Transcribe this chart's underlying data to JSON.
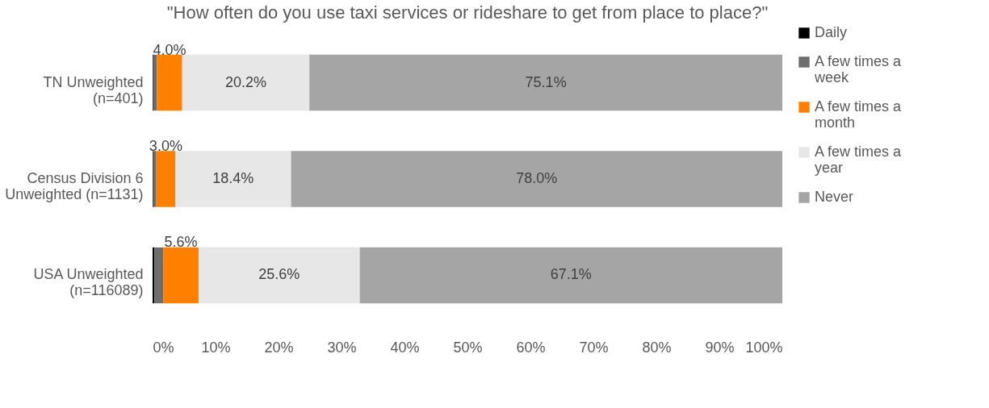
{
  "chart_data": {
    "type": "bar",
    "orientation": "horizontal",
    "stacked": true,
    "title": "\"How often do you use taxi services or rideshare to get from place to place?\"",
    "categories": [
      "TN Unweighted (n=401)",
      "Census Division 6 Unweighted (n=1131)",
      "USA Unweighted (n=116089)"
    ],
    "series": [
      {
        "name": "Daily",
        "color": "#000000",
        "values": [
          0.1,
          0.1,
          0.3
        ]
      },
      {
        "name": "A few times a week",
        "color": "#6d6d6d",
        "values": [
          0.6,
          0.5,
          1.4
        ]
      },
      {
        "name": "A few times a month",
        "color": "#ff8000",
        "values": [
          4.0,
          3.0,
          5.6
        ],
        "value_labels": [
          "4.0%",
          "3.0%",
          "5.6%"
        ]
      },
      {
        "name": "A few times a year",
        "color": "#e7e7e7",
        "values": [
          20.2,
          18.4,
          25.6
        ],
        "value_labels": [
          "20.2%",
          "18.4%",
          "25.6%"
        ]
      },
      {
        "name": "Never",
        "color": "#a5a5a5",
        "values": [
          75.1,
          78.0,
          67.1
        ],
        "value_labels": [
          "75.1%",
          "78.0%",
          "67.1%"
        ]
      }
    ],
    "xlim": [
      0,
      100
    ],
    "xticks": [
      {
        "value": 0,
        "label": "0%"
      },
      {
        "value": 10,
        "label": "10%"
      },
      {
        "value": 20,
        "label": "20%"
      },
      {
        "value": 30,
        "label": "30%"
      },
      {
        "value": 40,
        "label": "40%"
      },
      {
        "value": 50,
        "label": "50%"
      },
      {
        "value": 60,
        "label": "60%"
      },
      {
        "value": 70,
        "label": "70%"
      },
      {
        "value": 80,
        "label": "80%"
      },
      {
        "value": 90,
        "label": "90%"
      },
      {
        "value": 100,
        "label": "100%"
      }
    ],
    "legend": "right",
    "grid": false
  }
}
